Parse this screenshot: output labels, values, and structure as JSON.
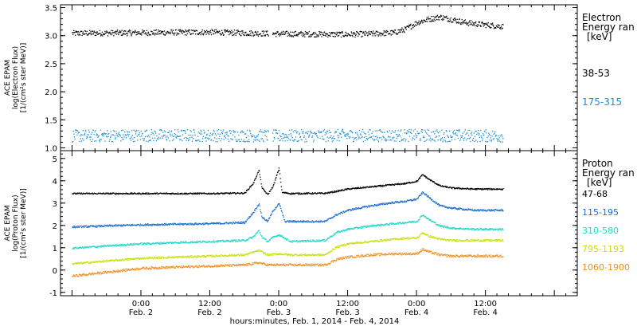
{
  "chart_data": [
    {
      "type": "scatter",
      "panel": "electron",
      "ylabel_lines": [
        "ACE EPAM",
        "log(Electron Flux)",
        "[1/(cm²s ster MeV)]"
      ],
      "legend_title": [
        "Electron",
        "Energy ran",
        "[keV]"
      ],
      "legend_position": "right",
      "ylim": [
        0.95,
        3.55
      ],
      "yticks": [
        1.0,
        1.5,
        2.0,
        2.5,
        3.0,
        3.5
      ],
      "ytick_labels": [
        "1.0",
        "1.5",
        "2.0",
        "2.5",
        "3.0",
        "3.5"
      ],
      "grid": false,
      "series": [
        {
          "name": "38-53",
          "color": "#000000",
          "scatter": 0.05,
          "points": [
            [
              -12,
              3.05
            ],
            [
              0,
              3.06
            ],
            [
              12,
              3.07
            ],
            [
              20,
              3.05
            ],
            [
              24,
              3.04
            ],
            [
              36,
              3.03
            ],
            [
              40,
              3.04
            ],
            [
              44,
              3.06
            ],
            [
              46,
              3.12
            ],
            [
              48,
              3.24
            ],
            [
              50,
              3.3
            ],
            [
              52,
              3.34
            ],
            [
              54,
              3.3
            ],
            [
              56,
              3.25
            ],
            [
              58,
              3.22
            ],
            [
              60,
              3.2
            ],
            [
              62,
              3.18
            ],
            [
              63,
              3.17
            ]
          ]
        },
        {
          "name": "175-315",
          "color": "#1f8ed8",
          "scatter": 0.11,
          "points": [
            [
              -12,
              1.22
            ],
            [
              0,
              1.23
            ],
            [
              12,
              1.23
            ],
            [
              24,
              1.22
            ],
            [
              36,
              1.23
            ],
            [
              48,
              1.23
            ],
            [
              63,
              1.22
            ]
          ]
        }
      ]
    },
    {
      "type": "scatter",
      "panel": "proton",
      "ylabel_lines": [
        "ACE EPAM",
        "log(Proton Flux)",
        "[1/(cm²s ster MeV)]"
      ],
      "legend_title": [
        "Proton",
        "Energy ran",
        "[keV]"
      ],
      "legend_position": "right",
      "ylim": [
        -1.15,
        5.35
      ],
      "yticks": [
        -1,
        0,
        1,
        2,
        3,
        4,
        5
      ],
      "ytick_labels": [
        "-1",
        "0",
        "1",
        "2",
        "3",
        "4",
        "5"
      ],
      "xlabel": "hours:minutes, Feb.  1, 2014 - Feb.  4, 2014",
      "x_tick_labels": [
        {
          "hour": 0,
          "time": "0:00",
          "date": "Feb. 2"
        },
        {
          "hour": 12,
          "time": "12:00",
          "date": "Feb. 2"
        },
        {
          "hour": 24,
          "time": "0:00",
          "date": "Feb. 3"
        },
        {
          "hour": 36,
          "time": "12:00",
          "date": "Feb. 3"
        },
        {
          "hour": 48,
          "time": "0:00",
          "date": "Feb. 4"
        },
        {
          "hour": 60,
          "time": "12:00",
          "date": "Feb. 4"
        }
      ],
      "xlim_hours": [
        -14,
        76
      ],
      "grid": false,
      "series": [
        {
          "name": "47-68",
          "color": "#000000",
          "scatter": 0.03,
          "points": [
            [
              -12,
              3.45
            ],
            [
              0,
              3.45
            ],
            [
              12,
              3.45
            ],
            [
              18,
              3.47
            ],
            [
              19.5,
              3.9
            ],
            [
              20.5,
              4.5
            ],
            [
              21,
              3.7
            ],
            [
              22,
              3.4
            ],
            [
              23,
              3.8
            ],
            [
              24,
              4.6
            ],
            [
              24.5,
              3.5
            ],
            [
              26,
              3.45
            ],
            [
              32,
              3.46
            ],
            [
              34,
              3.55
            ],
            [
              36,
              3.65
            ],
            [
              40,
              3.75
            ],
            [
              44,
              3.85
            ],
            [
              46,
              3.9
            ],
            [
              48,
              4.0
            ],
            [
              49,
              4.3
            ],
            [
              50,
              4.1
            ],
            [
              52,
              3.8
            ],
            [
              54,
              3.7
            ],
            [
              58,
              3.65
            ],
            [
              63,
              3.65
            ]
          ]
        },
        {
          "name": "115-195",
          "color": "#1f6fcf",
          "scatter": 0.04,
          "points": [
            [
              -12,
              1.95
            ],
            [
              0,
              2.05
            ],
            [
              12,
              2.1
            ],
            [
              18,
              2.15
            ],
            [
              19.5,
              2.6
            ],
            [
              20.5,
              3.0
            ],
            [
              21,
              2.4
            ],
            [
              22,
              2.2
            ],
            [
              23,
              2.7
            ],
            [
              24,
              3.0
            ],
            [
              25,
              2.2
            ],
            [
              32,
              2.2
            ],
            [
              34,
              2.5
            ],
            [
              36,
              2.7
            ],
            [
              40,
              2.9
            ],
            [
              44,
              3.05
            ],
            [
              46,
              3.1
            ],
            [
              48,
              3.2
            ],
            [
              49,
              3.5
            ],
            [
              50,
              3.3
            ],
            [
              52,
              2.9
            ],
            [
              54,
              2.8
            ],
            [
              58,
              2.7
            ],
            [
              63,
              2.7
            ]
          ]
        },
        {
          "name": "310-580",
          "color": "#22d8c8",
          "scatter": 0.04,
          "points": [
            [
              -12,
              1.0
            ],
            [
              0,
              1.2
            ],
            [
              12,
              1.3
            ],
            [
              18,
              1.35
            ],
            [
              19.5,
              1.5
            ],
            [
              20.5,
              1.8
            ],
            [
              21,
              1.5
            ],
            [
              22,
              1.3
            ],
            [
              23,
              1.5
            ],
            [
              24,
              1.6
            ],
            [
              26,
              1.3
            ],
            [
              32,
              1.35
            ],
            [
              34,
              1.7
            ],
            [
              36,
              1.85
            ],
            [
              40,
              2.0
            ],
            [
              44,
              2.1
            ],
            [
              46,
              2.15
            ],
            [
              48,
              2.2
            ],
            [
              49,
              2.5
            ],
            [
              50,
              2.3
            ],
            [
              52,
              2.0
            ],
            [
              54,
              1.9
            ],
            [
              58,
              1.85
            ],
            [
              63,
              1.85
            ]
          ]
        },
        {
          "name": "795-1193",
          "color": "#c8e010",
          "scatter": 0.04,
          "points": [
            [
              -12,
              0.3
            ],
            [
              0,
              0.55
            ],
            [
              12,
              0.65
            ],
            [
              18,
              0.7
            ],
            [
              20.5,
              0.9
            ],
            [
              22,
              0.7
            ],
            [
              24,
              0.75
            ],
            [
              26,
              0.7
            ],
            [
              32,
              0.7
            ],
            [
              34,
              1.05
            ],
            [
              36,
              1.2
            ],
            [
              40,
              1.3
            ],
            [
              44,
              1.4
            ],
            [
              46,
              1.45
            ],
            [
              48,
              1.45
            ],
            [
              49,
              1.7
            ],
            [
              50,
              1.55
            ],
            [
              52,
              1.4
            ],
            [
              54,
              1.35
            ],
            [
              58,
              1.35
            ],
            [
              63,
              1.35
            ]
          ]
        },
        {
          "name": "1060-1900",
          "color": "#f09020",
          "scatter": 0.05,
          "points": [
            [
              -12,
              -0.25
            ],
            [
              0,
              0.1
            ],
            [
              12,
              0.2
            ],
            [
              18,
              0.25
            ],
            [
              20.5,
              0.35
            ],
            [
              22,
              0.25
            ],
            [
              24,
              0.25
            ],
            [
              32,
              0.25
            ],
            [
              34,
              0.5
            ],
            [
              36,
              0.6
            ],
            [
              40,
              0.7
            ],
            [
              44,
              0.75
            ],
            [
              46,
              0.75
            ],
            [
              48,
              0.75
            ],
            [
              49,
              0.95
            ],
            [
              50,
              0.85
            ],
            [
              52,
              0.7
            ],
            [
              54,
              0.65
            ],
            [
              58,
              0.65
            ],
            [
              63,
              0.65
            ]
          ]
        }
      ]
    }
  ]
}
